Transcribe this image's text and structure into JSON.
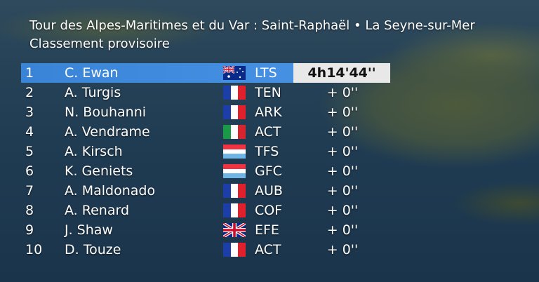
{
  "header": {
    "title": "Tour des Alpes-Maritimes et du Var : Saint-Raphaël •  La Seyne-sur-Mer",
    "subtitle": "Classement provisoire"
  },
  "rows": [
    {
      "pos": "1",
      "name": "C. Ewan",
      "flag": "australia-flag-icon",
      "team": "LTS",
      "time": "4h14'44''"
    },
    {
      "pos": "2",
      "name": "A. Turgis",
      "flag": "france-flag-icon",
      "team": "TEN",
      "time": "+  0''"
    },
    {
      "pos": "3",
      "name": "N. Bouhanni",
      "flag": "france-flag-icon",
      "team": "ARK",
      "time": "+  0''"
    },
    {
      "pos": "4",
      "name": "A. Vendrame",
      "flag": "italy-flag-icon",
      "team": "ACT",
      "time": "+  0''"
    },
    {
      "pos": "5",
      "name": "A. Kirsch",
      "flag": "luxembourg-flag-icon",
      "team": "TFS",
      "time": "+  0''"
    },
    {
      "pos": "6",
      "name": "K. Geniets",
      "flag": "luxembourg-flag-icon",
      "team": "GFC",
      "time": "+  0''"
    },
    {
      "pos": "7",
      "name": "A. Maldonado",
      "flag": "france-flag-icon",
      "team": "AUB",
      "time": "+  0''"
    },
    {
      "pos": "8",
      "name": "A. Renard",
      "flag": "france-flag-icon",
      "team": "COF",
      "time": "+  0''"
    },
    {
      "pos": "9",
      "name": "J. Shaw",
      "flag": "uk-flag-icon",
      "team": "EFE",
      "time": "+  0''"
    },
    {
      "pos": "10",
      "name": "D. Touze",
      "flag": "france-flag-icon",
      "team": "ACT",
      "time": "+  0''"
    }
  ]
}
